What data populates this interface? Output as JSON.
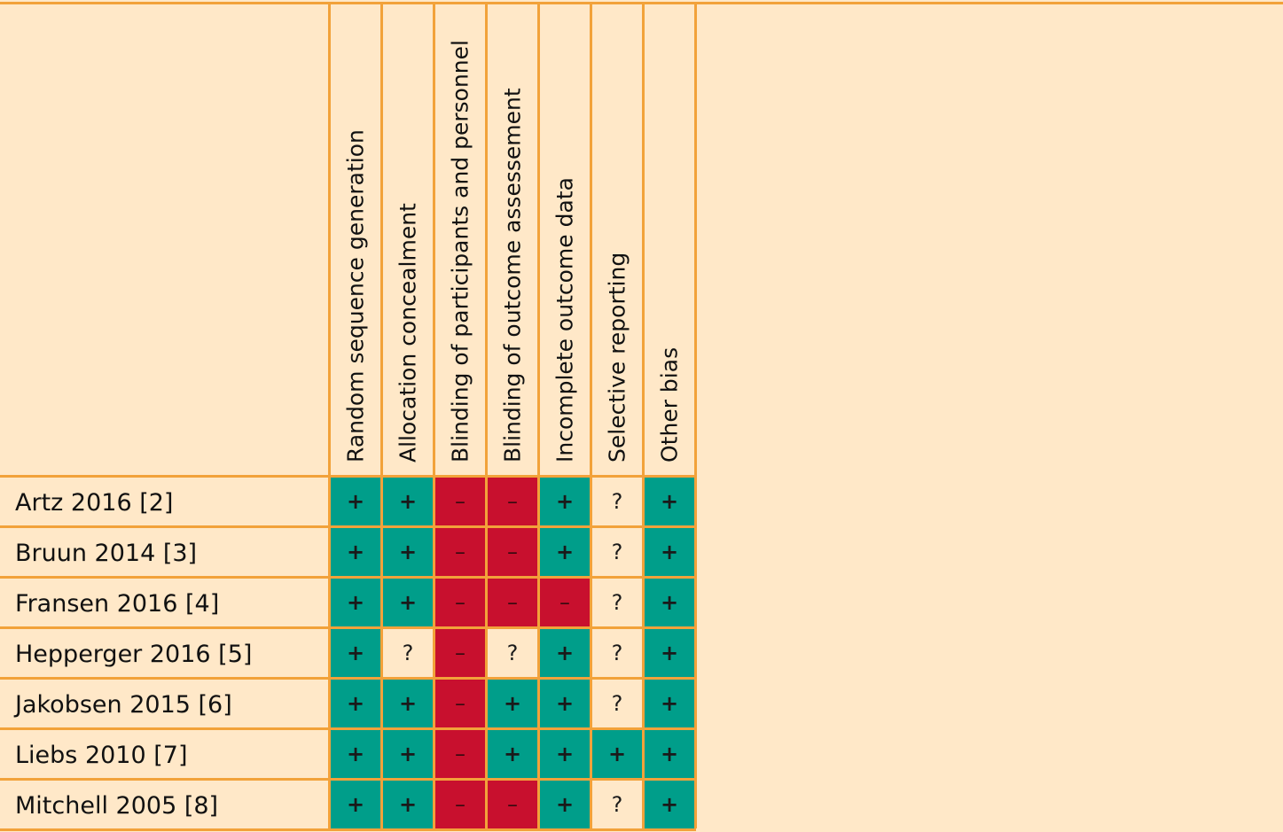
{
  "chart_data": {
    "type": "table",
    "columns": [
      "Random sequence generation",
      "Allocation concealment",
      "Blinding of participants and personnel",
      "Blinding of outcome assessement",
      "Incomplete outcome data",
      "Selective reporting",
      "Other bias"
    ],
    "rows": [
      {
        "study": "Artz 2016 [2]",
        "values": [
          "+",
          "+",
          "–",
          "–",
          "+",
          "?",
          "+"
        ]
      },
      {
        "study": "Bruun 2014 [3]",
        "values": [
          "+",
          "+",
          "–",
          "–",
          "+",
          "?",
          "+"
        ]
      },
      {
        "study": "Fransen 2016 [4]",
        "values": [
          "+",
          "+",
          "–",
          "–",
          "–",
          "?",
          "+"
        ]
      },
      {
        "study": "Hepperger 2016 [5]",
        "values": [
          "+",
          "?",
          "–",
          "?",
          "+",
          "?",
          "+"
        ]
      },
      {
        "study": "Jakobsen 2015 [6]",
        "values": [
          "+",
          "+",
          "–",
          "+",
          "+",
          "?",
          "+"
        ]
      },
      {
        "study": "Liebs 2010 [7]",
        "values": [
          "+",
          "+",
          "–",
          "+",
          "+",
          "+",
          "+"
        ]
      },
      {
        "study": "Mitchell 2005 [8]",
        "values": [
          "+",
          "+",
          "–",
          "–",
          "+",
          "?",
          "+"
        ]
      }
    ],
    "colors": {
      "low": "#009E8A",
      "high": "#C8102E",
      "unclear": "#FFE8C8",
      "grid": "#F2A23A",
      "background": "#FFE8C8"
    }
  }
}
